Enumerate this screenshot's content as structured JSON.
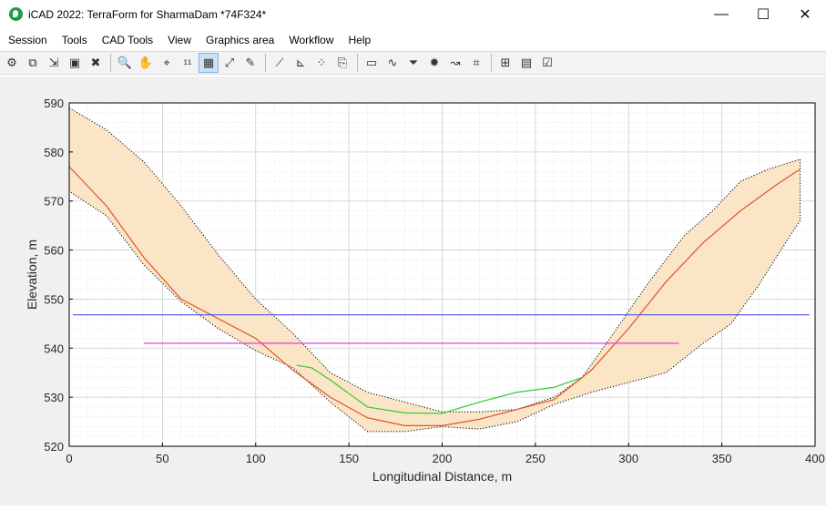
{
  "window": {
    "title": "iCAD 2022: TerraForm for SharmaDam *74F324*",
    "minimize_glyph": "—",
    "maximize_glyph": "☐",
    "close_glyph": "✕"
  },
  "menu": [
    {
      "label": "Session"
    },
    {
      "label": "Tools"
    },
    {
      "label": "CAD Tools"
    },
    {
      "label": "View"
    },
    {
      "label": "Graphics area"
    },
    {
      "label": "Workflow"
    },
    {
      "label": "Help"
    }
  ],
  "toolbar": {
    "groups": [
      [
        "settings-icon",
        "copy-icon",
        "import-icon",
        "save-icon",
        "erase-icon"
      ],
      [
        "zoom-icon",
        "pan-hand-icon",
        "pick-point-icon",
        "scale-icon",
        "grid-icon",
        "zoom-extents-icon",
        "edit-notes-icon"
      ],
      [
        "profile-line-icon",
        "section-icon",
        "scatter-points-icon",
        "export-icon"
      ],
      [
        "measure-icon",
        "curve-icon",
        "filter-icon",
        "gear-icon",
        "route-icon",
        "layout-icon"
      ],
      [
        "report-icon",
        "sheet-icon",
        "check-sheet-icon"
      ]
    ],
    "glyphs": {
      "settings-icon": "⚙",
      "copy-icon": "⧉",
      "import-icon": "⇲",
      "save-icon": "▣",
      "erase-icon": "✖",
      "zoom-icon": "🔍",
      "pan-hand-icon": "✋",
      "pick-point-icon": "⌖",
      "scale-icon": "¹¹",
      "grid-icon": "▦",
      "zoom-extents-icon": "⤢",
      "edit-notes-icon": "✎",
      "profile-line-icon": "⟋",
      "section-icon": "⊾",
      "scatter-points-icon": "⁘",
      "export-icon": "⎘",
      "measure-icon": "▭",
      "curve-icon": "∿",
      "filter-icon": "⏷",
      "gear-icon": "✹",
      "route-icon": "↝",
      "layout-icon": "⌗",
      "report-icon": "⊞",
      "sheet-icon": "▤",
      "check-sheet-icon": "☑"
    },
    "active": "grid-icon"
  },
  "chart_data": {
    "type": "area",
    "title": "",
    "xlabel": "Longitudinal Distance, m",
    "ylabel": "Elevation, m",
    "xlim": [
      0,
      400
    ],
    "ylim": [
      520,
      590
    ],
    "xticks": [
      0,
      50,
      100,
      150,
      200,
      250,
      300,
      350,
      400
    ],
    "yticks": [
      520,
      530,
      540,
      550,
      560,
      570,
      580,
      590
    ],
    "grid": true,
    "minor_grid": true,
    "band": {
      "upper": [
        [
          0,
          589
        ],
        [
          20,
          584.5
        ],
        [
          40,
          578
        ],
        [
          60,
          569
        ],
        [
          80,
          559
        ],
        [
          100,
          550
        ],
        [
          120,
          543
        ],
        [
          140,
          535
        ],
        [
          160,
          531
        ],
        [
          180,
          529
        ],
        [
          200,
          527
        ],
        [
          220,
          527
        ],
        [
          240,
          527.5
        ],
        [
          260,
          530
        ],
        [
          275,
          534
        ],
        [
          290,
          542
        ],
        [
          310,
          553
        ],
        [
          330,
          563
        ],
        [
          345,
          568
        ],
        [
          360,
          574
        ],
        [
          375,
          576.5
        ],
        [
          392,
          578.5
        ],
        [
          392,
          566
        ],
        [
          385,
          562
        ],
        [
          370,
          553
        ],
        [
          355,
          545
        ],
        [
          340,
          541
        ],
        [
          320,
          535
        ],
        [
          300,
          533
        ],
        [
          280,
          531
        ],
        [
          260,
          528.5
        ],
        [
          240,
          525
        ],
        [
          220,
          523.5
        ],
        [
          200,
          524
        ],
        [
          180,
          523
        ],
        [
          160,
          523
        ],
        [
          140,
          529
        ],
        [
          120,
          536
        ],
        [
          100,
          539.5
        ],
        [
          80,
          544
        ],
        [
          60,
          549.5
        ],
        [
          40,
          557
        ],
        [
          20,
          567
        ],
        [
          0,
          572
        ]
      ]
    },
    "series": [
      {
        "name": "",
        "color": "#e0542a",
        "x": [
          0,
          20,
          40,
          60,
          80,
          100,
          120,
          140,
          160,
          180,
          200,
          220,
          240,
          260,
          280,
          300,
          320,
          340,
          360,
          380,
          392
        ],
        "y": [
          577,
          569,
          558.5,
          550,
          546,
          542,
          535.5,
          530,
          525.8,
          524.2,
          524.2,
          525.5,
          527.5,
          529.5,
          535.5,
          544,
          553.5,
          561.5,
          568,
          573.5,
          576.5
        ]
      },
      {
        "name": "",
        "color": "#2ecc2e",
        "x": [
          122,
          130,
          140,
          160,
          180,
          200,
          220,
          240,
          260,
          275
        ],
        "y": [
          536.5,
          536,
          533.5,
          528,
          526.8,
          526.7,
          529,
          531,
          532,
          534
        ]
      },
      {
        "name": "",
        "color": "#5050f0",
        "x": [
          2,
          397
        ],
        "y": [
          546.8,
          546.8
        ]
      },
      {
        "name": "",
        "color": "#e040e0",
        "x": [
          40,
          327
        ],
        "y": [
          541,
          541
        ]
      }
    ],
    "band_fill": "#fbe5c7",
    "band_edge": "#000000"
  }
}
